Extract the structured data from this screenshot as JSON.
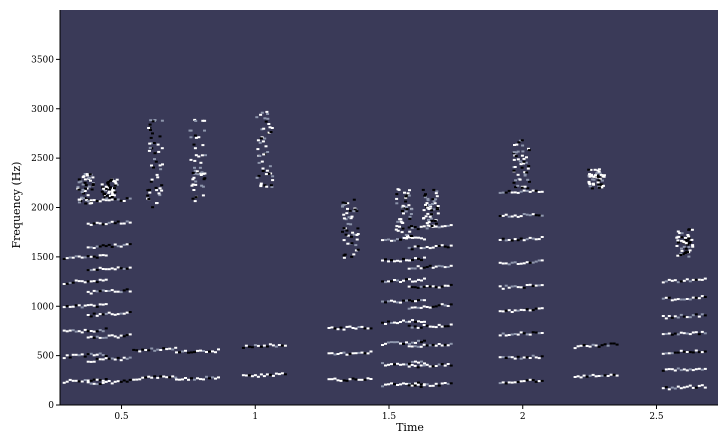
{
  "chart_data": {
    "type": "heatmap",
    "title": "",
    "xlabel": "Time",
    "ylabel": "Frequency (Hz)",
    "xlim": [
      0.27,
      2.73
    ],
    "ylim": [
      0,
      4000
    ],
    "xticks": [
      {
        "value": 0.5,
        "label": "0.5"
      },
      {
        "value": 1,
        "label": "1"
      },
      {
        "value": 1.5,
        "label": "1.5"
      },
      {
        "value": 2,
        "label": "2"
      },
      {
        "value": 2.5,
        "label": "2.5"
      }
    ],
    "yticks": [
      {
        "value": 0,
        "label": "0"
      },
      {
        "value": 500,
        "label": "500"
      },
      {
        "value": 1000,
        "label": "1000"
      },
      {
        "value": 1500,
        "label": "1500"
      },
      {
        "value": 2000,
        "label": "2000"
      },
      {
        "value": 2500,
        "label": "2500"
      },
      {
        "value": 3000,
        "label": "3000"
      },
      {
        "value": 3500,
        "label": "3500"
      }
    ],
    "grid": false,
    "legend": "none",
    "colors": {
      "background": "#3a3a58",
      "high": "#ffffff",
      "mid": "#8e96ac",
      "low": "#000000"
    },
    "segments": [
      {
        "t": 0.36,
        "harmonics": [
          250,
          500,
          750,
          1000,
          1250,
          1500
        ],
        "high_band": [
          2050,
          2350
        ]
      },
      {
        "t": 0.45,
        "harmonics": [
          230,
          460,
          690,
          920,
          1150,
          1380,
          1610,
          1840,
          2070
        ],
        "high_band": [
          2100,
          2300
        ]
      },
      {
        "t": 0.62,
        "harmonics": [
          280,
          560
        ],
        "high_band": [
          2000,
          2900
        ]
      },
      {
        "t": 0.78,
        "harmonics": [
          270,
          540
        ],
        "high_band": [
          2050,
          2900
        ]
      },
      {
        "t": 1.03,
        "harmonics": [
          300,
          600
        ],
        "high_band": [
          2200,
          3000
        ]
      },
      {
        "t": 1.35,
        "harmonics": [
          260,
          520,
          780
        ],
        "high_band": [
          1500,
          2100
        ]
      },
      {
        "t": 1.55,
        "harmonics": [
          210,
          420,
          630,
          840,
          1050,
          1260,
          1470,
          1680
        ],
        "high_band": [
          1700,
          2200
        ]
      },
      {
        "t": 1.65,
        "harmonics": [
          200,
          400,
          600,
          800,
          1000,
          1200,
          1400,
          1600,
          1800
        ],
        "high_band": [
          1800,
          2200
        ]
      },
      {
        "t": 1.99,
        "harmonics": [
          240,
          480,
          720,
          960,
          1200,
          1440,
          1680,
          1920,
          2160
        ],
        "high_band": [
          2200,
          2700
        ]
      },
      {
        "t": 2.27,
        "harmonics": [
          300,
          600
        ],
        "high_band": [
          2200,
          2400
        ]
      },
      {
        "t": 2.6,
        "harmonics": [
          180,
          360,
          540,
          720,
          900,
          1080,
          1260
        ],
        "high_band": [
          1500,
          1800
        ]
      }
    ]
  }
}
